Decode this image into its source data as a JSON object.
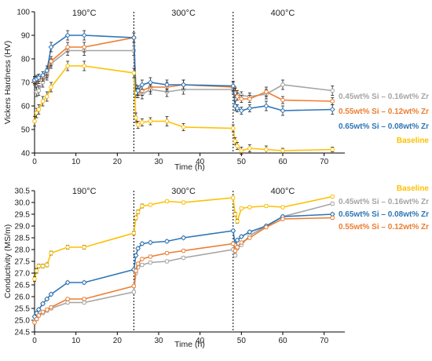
{
  "chart_data": [
    {
      "type": "line",
      "title": "",
      "xlabel": "Time (h)",
      "ylabel": "Vickers Hardness (HV)",
      "xlim": [
        0,
        75
      ],
      "ylim": [
        40,
        100
      ],
      "xticks": [
        0,
        10,
        20,
        30,
        40,
        50,
        60,
        70
      ],
      "yticks": [
        40,
        50,
        60,
        70,
        80,
        90,
        100
      ],
      "grid": false,
      "legend_position": "right",
      "dividers": [
        24,
        48
      ],
      "temperature_labels": [
        {
          "text": "190°C",
          "x": 12
        },
        {
          "text": "300°C",
          "x": 36
        },
        {
          "text": "400°C",
          "x": 60
        }
      ],
      "series": [
        {
          "name": "0.45wt% Si – 0.16wt% Zr",
          "color": "#a5a5a5",
          "marker": "circle",
          "x": [
            0,
            0.5,
            1,
            2,
            3,
            4,
            8,
            12,
            24,
            24.5,
            25,
            26,
            28,
            32,
            36,
            48,
            48.5,
            49,
            50,
            52,
            56,
            60,
            72
          ],
          "y": [
            71,
            66,
            66.5,
            70,
            73,
            78,
            83.5,
            83.5,
            83.5,
            67,
            66.5,
            65,
            67,
            66,
            67,
            67,
            66,
            65,
            64.5,
            64,
            65,
            69,
            66.5
          ],
          "err": [
            1.5,
            2,
            2,
            2,
            2,
            2,
            2,
            2,
            2,
            2,
            2,
            2,
            2,
            2,
            2,
            2,
            2,
            1.5,
            1.5,
            1.5,
            2,
            2,
            2
          ]
        },
        {
          "name": "0.55wt% Si – 0.12wt% Zr",
          "color": "#ed7d31",
          "marker": "circle",
          "x": [
            0,
            0.5,
            1,
            2,
            3,
            4,
            8,
            12,
            24,
            24.5,
            25,
            26,
            28,
            32,
            36,
            48,
            48.5,
            49,
            50,
            52,
            56,
            60,
            72
          ],
          "y": [
            70.5,
            70.5,
            71,
            72,
            74,
            79,
            85,
            85,
            89,
            67,
            65.5,
            66.5,
            68,
            68,
            69,
            68,
            65.5,
            64,
            63,
            63,
            66,
            62.5,
            62
          ],
          "err": [
            1.5,
            1.5,
            1.5,
            1.5,
            2,
            2,
            2,
            2,
            2,
            2,
            2,
            2,
            2,
            2,
            2,
            2,
            2,
            1.5,
            1.5,
            1.5,
            2,
            1.5,
            1.5
          ]
        },
        {
          "name": "0.65wt% Si – 0.08wt% Zr",
          "color": "#2e75b6",
          "marker": "diamond",
          "x": [
            0,
            0.5,
            1,
            2,
            3,
            4,
            8,
            12,
            24,
            24.5,
            25,
            26,
            28,
            32,
            36,
            48,
            48.5,
            49,
            50,
            52,
            56,
            60,
            72
          ],
          "y": [
            71,
            71.5,
            72,
            73,
            75,
            85,
            90,
            90,
            89,
            65.5,
            66.5,
            69,
            70,
            69,
            69,
            68.5,
            60,
            59,
            58,
            59,
            60,
            58,
            58.5
          ],
          "err": [
            1.5,
            1.5,
            1.5,
            1.5,
            2,
            2,
            2,
            2,
            2,
            2,
            2,
            2,
            2,
            2,
            2,
            2,
            2,
            1.5,
            1.5,
            1.5,
            2,
            2,
            2
          ]
        },
        {
          "name": "Baseline",
          "color": "#ffc000",
          "marker": "circle",
          "x": [
            0,
            0.5,
            1,
            2,
            3,
            4,
            8,
            12,
            24,
            24.5,
            25,
            26,
            28,
            32,
            36,
            48,
            48.5,
            49,
            50,
            52,
            56,
            60,
            72
          ],
          "y": [
            53.5,
            57,
            58.5,
            62,
            64,
            68,
            77,
            77,
            74,
            55,
            52,
            53,
            53.5,
            53.5,
            51,
            50.5,
            45,
            43,
            41,
            42,
            41.5,
            41,
            41.5
          ],
          "err": [
            2,
            2,
            2,
            2,
            2,
            2,
            2,
            2,
            2,
            2,
            1.5,
            1.5,
            1.5,
            2,
            1.5,
            1.5,
            1.5,
            1.5,
            1.5,
            1.5,
            1.5,
            1,
            1
          ]
        }
      ]
    },
    {
      "type": "line",
      "title": "",
      "xlabel": "Time (h)",
      "ylabel": "Conductivity (MS/m)",
      "xlim": [
        0,
        75
      ],
      "ylim": [
        24.5,
        30.5
      ],
      "xticks": [
        0,
        10,
        20,
        30,
        40,
        50,
        60,
        70
      ],
      "yticks": [
        24.5,
        25.0,
        25.5,
        26.0,
        26.5,
        27.0,
        27.5,
        28.0,
        28.5,
        29.0,
        29.5,
        30.0,
        30.5
      ],
      "grid": false,
      "legend_position": "right",
      "dividers": [
        24,
        48
      ],
      "temperature_labels": [
        {
          "text": "190°C",
          "x": 12
        },
        {
          "text": "300°C",
          "x": 36
        },
        {
          "text": "400°C",
          "x": 60
        }
      ],
      "series": [
        {
          "name": "Baseline",
          "color": "#ffc000",
          "marker": "circle",
          "x": [
            0,
            0.5,
            1,
            2,
            3,
            4,
            8,
            12,
            24,
            24.5,
            25,
            26,
            28,
            32,
            36,
            48,
            48.5,
            49,
            50,
            52,
            56,
            60,
            72
          ],
          "y": [
            26.75,
            27.1,
            27.3,
            27.3,
            27.35,
            27.85,
            28.1,
            28.1,
            28.7,
            29.35,
            29.6,
            29.85,
            29.9,
            30.05,
            30.0,
            30.2,
            29.5,
            29.2,
            29.75,
            29.8,
            29.85,
            29.8,
            30.25
          ],
          "err": [
            0.1,
            0.1,
            0.08,
            0.08,
            0.08,
            0.08,
            0.08,
            0.08,
            0.08,
            0.08,
            0.08,
            0.08,
            0.06,
            0.06,
            0.06,
            0.06,
            0.08,
            0.08,
            0.06,
            0.06,
            0.06,
            0.06,
            0.06
          ]
        },
        {
          "name": "0.45wt% Si – 0.16wt% Zr",
          "color": "#a5a5a5",
          "marker": "circle",
          "x": [
            0,
            0.5,
            1,
            2,
            3,
            4,
            8,
            12,
            24,
            24.5,
            25,
            26,
            28,
            32,
            36,
            48,
            48.5,
            49,
            50,
            52,
            56,
            60,
            72
          ],
          "y": [
            24.95,
            25.05,
            25.2,
            25.3,
            25.4,
            25.5,
            25.75,
            25.75,
            26.2,
            27.0,
            27.25,
            27.35,
            27.45,
            27.5,
            27.65,
            28.0,
            27.75,
            28.05,
            28.2,
            28.6,
            29.0,
            29.4,
            29.95
          ],
          "err": [
            0.06,
            0.06,
            0.06,
            0.06,
            0.06,
            0.06,
            0.06,
            0.06,
            0.06,
            0.06,
            0.06,
            0.06,
            0.06,
            0.06,
            0.06,
            0.06,
            0.06,
            0.06,
            0.06,
            0.06,
            0.06,
            0.06,
            0.06
          ]
        },
        {
          "name": "0.65wt% Si – 0.08wt% Zr",
          "color": "#2e75b6",
          "marker": "diamond",
          "x": [
            0,
            0.5,
            1,
            2,
            3,
            4,
            8,
            12,
            24,
            24.5,
            25,
            26,
            28,
            32,
            36,
            48,
            48.5,
            49,
            50,
            52,
            56,
            60,
            72
          ],
          "y": [
            25.15,
            25.3,
            25.45,
            25.7,
            25.9,
            26.1,
            26.6,
            26.6,
            27.15,
            27.75,
            28.05,
            28.25,
            28.3,
            28.35,
            28.5,
            28.8,
            28.2,
            28.4,
            28.55,
            28.75,
            29.0,
            29.4,
            29.5
          ],
          "err": [
            0.06,
            0.06,
            0.06,
            0.06,
            0.06,
            0.06,
            0.06,
            0.06,
            0.06,
            0.06,
            0.06,
            0.06,
            0.06,
            0.06,
            0.06,
            0.06,
            0.06,
            0.06,
            0.06,
            0.06,
            0.06,
            0.06,
            0.06
          ]
        },
        {
          "name": "0.55wt% Si – 0.12wt% Zr",
          "color": "#ed7d31",
          "marker": "circle",
          "x": [
            0,
            0.5,
            1,
            2,
            3,
            4,
            8,
            12,
            24,
            24.5,
            25,
            26,
            28,
            32,
            36,
            48,
            48.5,
            49,
            50,
            52,
            56,
            60,
            72
          ],
          "y": [
            24.9,
            25.05,
            25.2,
            25.35,
            25.45,
            25.55,
            25.9,
            25.9,
            26.45,
            27.1,
            27.4,
            27.6,
            27.7,
            27.85,
            27.95,
            28.25,
            27.95,
            28.1,
            28.3,
            28.5,
            28.95,
            29.3,
            29.35
          ],
          "err": [
            0.06,
            0.06,
            0.06,
            0.06,
            0.06,
            0.06,
            0.06,
            0.06,
            0.06,
            0.06,
            0.06,
            0.06,
            0.06,
            0.06,
            0.06,
            0.06,
            0.06,
            0.06,
            0.06,
            0.06,
            0.06,
            0.06,
            0.06
          ]
        }
      ]
    }
  ]
}
